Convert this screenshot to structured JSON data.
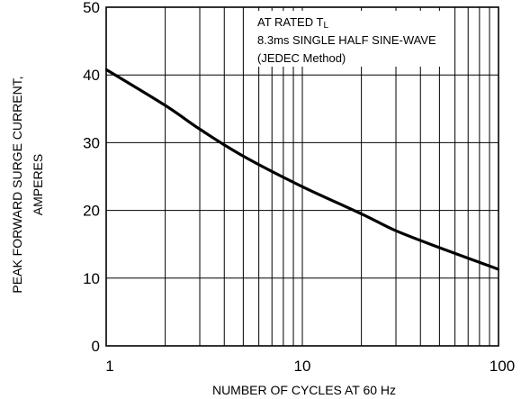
{
  "chart_data": {
    "type": "line",
    "title": "",
    "xlabel": "NUMBER OF CYCLES AT 60 Hz",
    "ylabel_lines": [
      "PEAK FORWARD SURGE  CURRENT,",
      "AMPERES"
    ],
    "xscale": "log",
    "xlim": [
      1,
      100
    ],
    "ylim": [
      0,
      50
    ],
    "xticks": [
      1,
      10,
      100
    ],
    "xtick_labels": [
      "1",
      "10",
      "100"
    ],
    "yticks": [
      0,
      10,
      20,
      30,
      40,
      50
    ],
    "ytick_labels": [
      "0",
      "10",
      "20",
      "30",
      "40",
      "50"
    ],
    "grid": true,
    "legend": "none",
    "annotation": {
      "line1_main": "AT RATED T",
      "line1_sub": "L",
      "line2": "8.3ms SINGLE HALF SINE-WAVE",
      "line3": "(JEDEC Method)"
    },
    "series": [
      {
        "x": [
          1,
          2,
          3,
          5,
          10,
          20,
          30,
          50,
          100
        ],
        "y": [
          40.8,
          35.5,
          32.0,
          28.0,
          23.5,
          19.5,
          17.0,
          14.5,
          11.3
        ]
      }
    ],
    "colors": {
      "line": "#000000",
      "grid": "#000000",
      "background": "#ffffff"
    }
  }
}
